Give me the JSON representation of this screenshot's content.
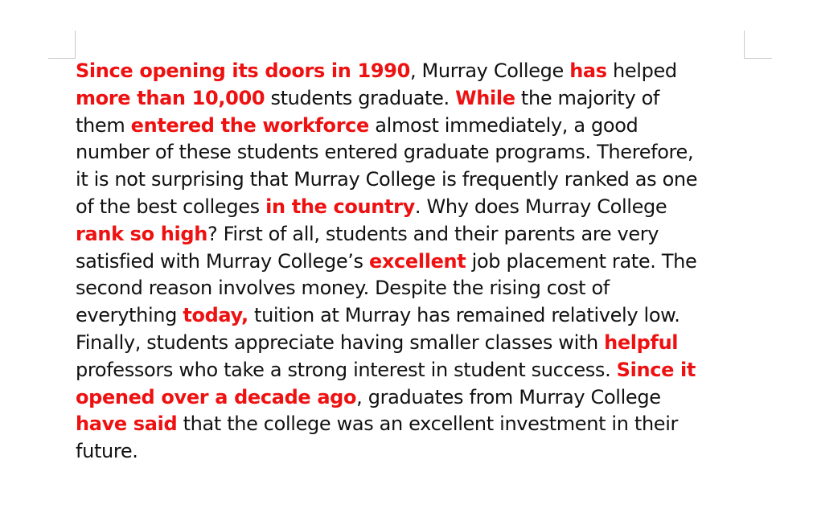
{
  "document": {
    "lines": [
      [
        {
          "text": "Since opening its doors in 1990",
          "highlight": true
        },
        {
          "text": ", Murray College ",
          "highlight": false
        },
        {
          "text": "has",
          "highlight": true
        },
        {
          "text": " helped",
          "highlight": false
        }
      ],
      [
        {
          "text": "more than 10,000",
          "highlight": true
        },
        {
          "text": " students graduate. ",
          "highlight": false
        },
        {
          "text": "While",
          "highlight": true
        },
        {
          "text": " the majority of",
          "highlight": false
        }
      ],
      [
        {
          "text": "them ",
          "highlight": false
        },
        {
          "text": "entered the workforce",
          "highlight": true
        },
        {
          "text": " almost immediately, a good",
          "highlight": false
        }
      ],
      [
        {
          "text": "number of these students entered graduate programs. Therefore,",
          "highlight": false
        }
      ],
      [
        {
          "text": "it is not surprising that Murray College is frequently ranked as one",
          "highlight": false
        }
      ],
      [
        {
          "text": "of the best colleges ",
          "highlight": false
        },
        {
          "text": "in the country",
          "highlight": true
        },
        {
          "text": ". Why does Murray College",
          "highlight": false
        }
      ],
      [
        {
          "text": "rank so high",
          "highlight": true
        },
        {
          "text": "? First of all, students and their parents are very",
          "highlight": false
        }
      ],
      [
        {
          "text": "satisfied with Murray College’s ",
          "highlight": false
        },
        {
          "text": "excellent",
          "highlight": true
        },
        {
          "text": " job placement rate. The",
          "highlight": false
        }
      ],
      [
        {
          "text": "second reason involves money. Despite the rising cost of",
          "highlight": false
        }
      ],
      [
        {
          "text": "everything ",
          "highlight": false
        },
        {
          "text": "today,",
          "highlight": true
        },
        {
          "text": " tuition at Murray has remained relatively low.",
          "highlight": false
        }
      ],
      [
        {
          "text": "Finally, students appreciate having smaller classes with ",
          "highlight": false
        },
        {
          "text": "helpful",
          "highlight": true
        }
      ],
      [
        {
          "text": "professors who take a strong interest in student success. ",
          "highlight": false
        },
        {
          "text": "Since it",
          "highlight": true
        }
      ],
      [
        {
          "text": "opened over a decade ago",
          "highlight": true
        },
        {
          "text": ", graduates from Murray College",
          "highlight": false
        }
      ],
      [
        {
          "text": "have said",
          "highlight": true
        },
        {
          "text": " that the college was an excellent investment in their",
          "highlight": false
        }
      ],
      [
        {
          "text": "future.",
          "highlight": false
        }
      ]
    ]
  }
}
